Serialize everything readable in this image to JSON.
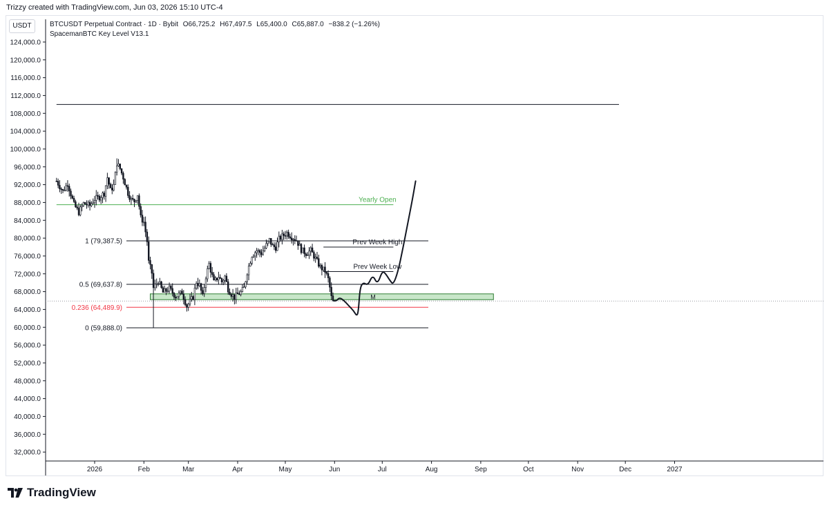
{
  "caption": "Trizzy created with TradingView.com, Jun 03, 2026 15:10 UTC-4",
  "currency_label": "USDT",
  "legend": {
    "symbol": "BTCUSDT Perpetual Contract · 1D · Bybit",
    "open": "O66,725.2",
    "high": "H67,497.5",
    "low": "L65,400.0",
    "close": "C65,887.0",
    "change": "−838.2 (−1.26%)",
    "indicator": "SpacemanBTC Key Level V13.1"
  },
  "brand": {
    "name": "TradingView",
    "icon": "tradingview-logo-icon"
  },
  "colors": {
    "up": "#131722",
    "down": "#131722",
    "yearly_open": "#4caf50",
    "fib_0236": "#f23645",
    "zone_fill": "#c8e6c9",
    "zone_stroke": "#2e7d32"
  },
  "chart_data": {
    "type": "candlestick",
    "ylim": [
      30000,
      126000
    ],
    "y_ticks": [
      "124,000.0",
      "120,000.0",
      "116,000.0",
      "112,000.0",
      "108,000.0",
      "104,000.0",
      "100,000.0",
      "96,000.0",
      "92,000.0",
      "88,000.0",
      "84,000.0",
      "80,000.0",
      "76,000.0",
      "72,000.0",
      "68,000.0",
      "64,000.0",
      "60,000.0",
      "56,000.0",
      "52,000.0",
      "48,000.0",
      "44,000.0",
      "40,000.0",
      "36,000.0",
      "32,000.0"
    ],
    "y_tick_values": [
      124000,
      120000,
      116000,
      112000,
      108000,
      104000,
      100000,
      96000,
      92000,
      88000,
      84000,
      80000,
      76000,
      72000,
      68000,
      64000,
      60000,
      56000,
      52000,
      48000,
      44000,
      40000,
      36000,
      32000
    ],
    "x_ticks": [
      "2026",
      "Feb",
      "Mar",
      "Apr",
      "May",
      "Jun",
      "Jul",
      "Aug",
      "Sep",
      "Oct",
      "Nov",
      "Dec",
      "2027"
    ],
    "x_tick_days": [
      0,
      31,
      59,
      90,
      120,
      151,
      181,
      212,
      243,
      273,
      304,
      334,
      365
    ],
    "x_start_day": -24,
    "price_path": [
      [
        -24,
        92800
      ],
      [
        -20,
        90500
      ],
      [
        -17,
        92300
      ],
      [
        -13,
        87500
      ],
      [
        -10,
        85800
      ],
      [
        -7,
        87800
      ],
      [
        -3,
        87300
      ],
      [
        0,
        88800
      ],
      [
        3,
        89200
      ],
      [
        6,
        90100
      ],
      [
        8,
        93600
      ],
      [
        10,
        90700
      ],
      [
        12,
        91800
      ],
      [
        14,
        96800
      ],
      [
        16,
        95600
      ],
      [
        18,
        93600
      ],
      [
        21,
        90100
      ],
      [
        23,
        88600
      ],
      [
        25,
        88300
      ],
      [
        27,
        89800
      ],
      [
        29,
        84600
      ],
      [
        31,
        83600
      ],
      [
        33,
        79300
      ],
      [
        34,
        74600
      ],
      [
        36,
        72200
      ],
      [
        37,
        68800
      ],
      [
        40,
        70400
      ],
      [
        43,
        67800
      ],
      [
        47,
        68700
      ],
      [
        51,
        66900
      ],
      [
        55,
        67800
      ],
      [
        58,
        64700
      ],
      [
        62,
        66800
      ],
      [
        64,
        70200
      ],
      [
        66,
        69400
      ],
      [
        68,
        66900
      ],
      [
        70,
        71400
      ],
      [
        72,
        74200
      ],
      [
        75,
        70100
      ],
      [
        78,
        71400
      ],
      [
        80,
        70200
      ],
      [
        82,
        71400
      ],
      [
        84,
        68600
      ],
      [
        86,
        67500
      ],
      [
        88,
        66700
      ],
      [
        90,
        67400
      ],
      [
        92,
        67800
      ],
      [
        94,
        68800
      ],
      [
        96,
        72400
      ],
      [
        99,
        76200
      ],
      [
        102,
        77200
      ],
      [
        105,
        76600
      ],
      [
        108,
        78400
      ],
      [
        110,
        79600
      ],
      [
        112,
        78200
      ],
      [
        114,
        77900
      ],
      [
        116,
        79800
      ],
      [
        119,
        80700
      ],
      [
        121,
        81200
      ],
      [
        124,
        80300
      ],
      [
        127,
        79600
      ],
      [
        130,
        77400
      ],
      [
        133,
        76600
      ],
      [
        136,
        77200
      ],
      [
        139,
        75400
      ],
      [
        142,
        73500
      ],
      [
        145,
        72600
      ],
      [
        147,
        70800
      ],
      [
        148,
        68900
      ],
      [
        149,
        66700
      ],
      [
        150,
        65900
      ]
    ],
    "price_range_by_day": {
      "low_min": 59888,
      "high_max": 97900
    },
    "projection_path": [
      [
        150,
        66000
      ],
      [
        152,
        65800
      ],
      [
        154,
        66700
      ],
      [
        157,
        66000
      ],
      [
        160,
        64800
      ],
      [
        163,
        63700
      ],
      [
        165,
        62500
      ],
      [
        166,
        63600
      ],
      [
        167,
        68800
      ],
      [
        169,
        70100
      ],
      [
        172,
        69400
      ],
      [
        175,
        71800
      ],
      [
        178,
        69600
      ],
      [
        181,
        72600
      ],
      [
        183,
        72100
      ],
      [
        186,
        70400
      ],
      [
        188,
        69600
      ],
      [
        191,
        72600
      ],
      [
        194,
        77700
      ],
      [
        197,
        83200
      ],
      [
        200,
        88700
      ],
      [
        202,
        92800
      ]
    ],
    "horizontal_levels": [
      {
        "label": "1 (79,387.5)",
        "value": 79387.5,
        "from_day": 20,
        "to_day": 210
      },
      {
        "label": "0.5 (69,637.8)",
        "value": 69637.8,
        "from_day": 20,
        "to_day": 210
      },
      {
        "label": "0.236 (64,489.9)",
        "value": 64489.9,
        "from_day": 20,
        "to_day": 210
      },
      {
        "label": "0 (59,888.0)",
        "value": 59888.0,
        "from_day": 20,
        "to_day": 210
      },
      {
        "label": "Yearly Open",
        "value": 87500,
        "from_day": -24,
        "to_day": 188
      },
      {
        "label": "Prev Week High",
        "value": 78000,
        "from_day": 144,
        "to_day": 188
      },
      {
        "label": "Prev Week Low",
        "value": 72500,
        "from_day": 144,
        "to_day": 188
      },
      {
        "label": "",
        "value": 110000,
        "from_day": -24,
        "to_day": 330
      }
    ],
    "zone": {
      "label": "M",
      "low": 66200,
      "high": 67500,
      "from_day": 35,
      "to_day": 251
    },
    "current_price": 65887.0
  }
}
